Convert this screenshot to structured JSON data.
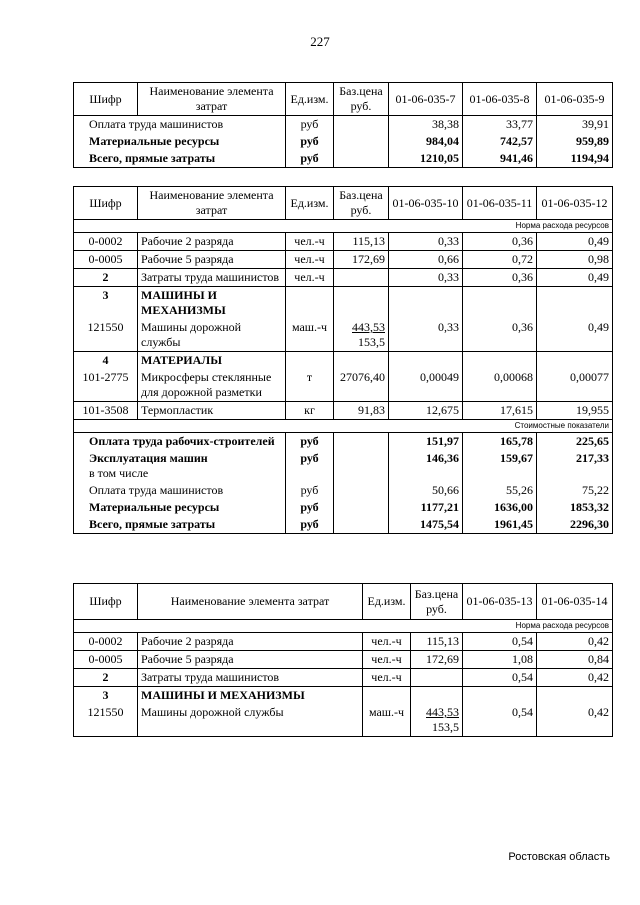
{
  "page_number": "227",
  "tables": [
    {
      "columns": [
        "Шифр",
        "Наименование элемента затрат",
        "Ед.изм.",
        "Баз.цена руб.",
        "01-06-035-7",
        "01-06-035-8",
        "01-06-035-9"
      ],
      "groups": [
        {
          "rows": [
            {
              "wide": true,
              "name": "Оплата труда машинистов",
              "unit": "руб",
              "values": [
                "38,38",
                "33,77",
                "39,91"
              ]
            },
            {
              "wide": true,
              "bold": true,
              "name": "Материальные ресурсы",
              "unit": "руб",
              "values": [
                "984,04",
                "742,57",
                "959,89"
              ]
            },
            {
              "wide": true,
              "bold": true,
              "name": "Всего, прямые затраты",
              "unit": "руб",
              "values": [
                "1210,05",
                "941,46",
                "1194,94"
              ]
            }
          ]
        }
      ]
    },
    {
      "columns": [
        "Шифр",
        "Наименование элемента затрат",
        "Ед.изм.",
        "Баз.цена руб.",
        "01-06-035-10",
        "01-06-035-11",
        "01-06-035-12"
      ],
      "groups": [
        {
          "label": "Норма расхода ресурсов"
        },
        {
          "rows": [
            {
              "code": "0-0002",
              "name": "Рабочие 2 разряда",
              "unit": "чел.-ч",
              "price": "115,13",
              "values": [
                "0,33",
                "0,36",
                "0,49"
              ]
            }
          ]
        },
        {
          "rows": [
            {
              "code": "0-0005",
              "name": "Рабочие 5 разряда",
              "unit": "чел.-ч",
              "price": "172,69",
              "values": [
                "0,66",
                "0,72",
                "0,98"
              ]
            }
          ]
        },
        {
          "rows": [
            {
              "code": "2",
              "section": true,
              "name": "Затраты труда машинистов",
              "unit": "чел.-ч",
              "values": [
                "0,33",
                "0,36",
                "0,49"
              ]
            }
          ]
        },
        {
          "rows": [
            {
              "code": "3",
              "section": true,
              "bold": true,
              "name": "МАШИНЫ И МЕХАНИЗМЫ"
            },
            {
              "code": "121550",
              "name": "Машины дорожной службы",
              "unit": "маш.-ч",
              "price": "443,53",
              "price2": "153,5",
              "values": [
                "0,33",
                "0,36",
                "0,49"
              ]
            }
          ]
        },
        {
          "rows": [
            {
              "code": "4",
              "section": true,
              "bold": true,
              "name": "МАТЕРИАЛЫ"
            },
            {
              "code": "101-2775",
              "name": "Микросферы стеклянные для дорожной разметки",
              "unit": "т",
              "price": "27076,40",
              "values": [
                "0,00049",
                "0,00068",
                "0,00077"
              ]
            }
          ]
        },
        {
          "rows": [
            {
              "code": "101-3508",
              "name": "Термопластик",
              "unit": "кг",
              "price": "91,83",
              "values": [
                "12,675",
                "17,615",
                "19,955"
              ]
            }
          ]
        },
        {
          "label": "Стоимостные показатели"
        },
        {
          "rows": [
            {
              "wide": true,
              "bold": true,
              "name": "Оплата труда рабочих-строителей",
              "unit": "руб",
              "values": [
                "151,97",
                "165,78",
                "225,65"
              ]
            },
            {
              "wide": true,
              "bold": true,
              "name": "Эксплуатация машин",
              "note": "в том числе",
              "unit": "руб",
              "values": [
                "146,36",
                "159,67",
                "217,33"
              ]
            },
            {
              "wide": true,
              "name": "Оплата труда машинистов",
              "unit": "руб",
              "values": [
                "50,66",
                "55,26",
                "75,22"
              ]
            },
            {
              "wide": true,
              "bold": true,
              "name": "Материальные ресурсы",
              "unit": "руб",
              "values": [
                "1177,21",
                "1636,00",
                "1853,32"
              ]
            },
            {
              "wide": true,
              "bold": true,
              "name": "Всего, прямые затраты",
              "unit": "руб",
              "values": [
                "1475,54",
                "1961,45",
                "2296,30"
              ]
            }
          ]
        }
      ]
    },
    {
      "columns": [
        "Шифр",
        "Наименование элемента затрат",
        "Ед.изм.",
        "Баз.цена руб.",
        "01-06-035-13",
        "01-06-035-14"
      ],
      "groups": [
        {
          "label": "Норма расхода ресурсов"
        },
        {
          "rows": [
            {
              "code": "0-0002",
              "name": "Рабочие 2 разряда",
              "unit": "чел.-ч",
              "price": "115,13",
              "values": [
                "0,54",
                "0,42"
              ]
            }
          ]
        },
        {
          "rows": [
            {
              "code": "0-0005",
              "name": "Рабочие 5 разряда",
              "unit": "чел.-ч",
              "price": "172,69",
              "values": [
                "1,08",
                "0,84"
              ]
            }
          ]
        },
        {
          "rows": [
            {
              "code": "2",
              "section": true,
              "name": "Затраты труда машинистов",
              "unit": "чел.-ч",
              "values": [
                "0,54",
                "0,42"
              ]
            }
          ]
        },
        {
          "rows": [
            {
              "code": "3",
              "section": true,
              "bold": true,
              "name": "МАШИНЫ И МЕХАНИЗМЫ"
            },
            {
              "code": "121550",
              "name": "Машины дорожной службы",
              "unit": "маш.-ч",
              "price": "443,53",
              "price2": "153,5",
              "values": [
                "0,54",
                "0,42"
              ]
            }
          ]
        }
      ]
    }
  ],
  "footer": "Ростовская область"
}
